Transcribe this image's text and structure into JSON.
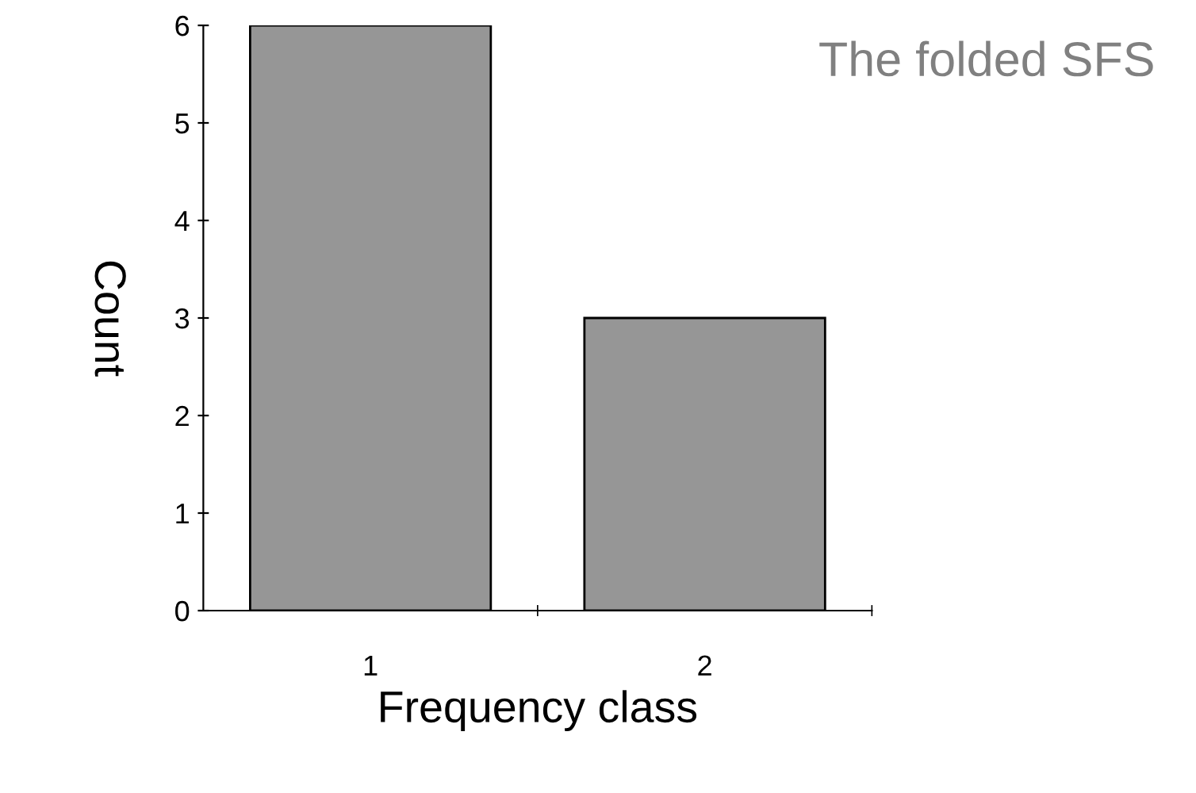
{
  "chart_data": {
    "type": "bar",
    "title": "The folded SFS",
    "xlabel": "Frequency class",
    "ylabel": "Count",
    "categories": [
      "1",
      "2"
    ],
    "values": [
      6,
      3
    ],
    "color": "#969696",
    "ylim": [
      0,
      6
    ],
    "yticks": [
      0,
      1,
      2,
      3,
      4,
      5,
      6
    ],
    "grid": false,
    "legend": false
  }
}
